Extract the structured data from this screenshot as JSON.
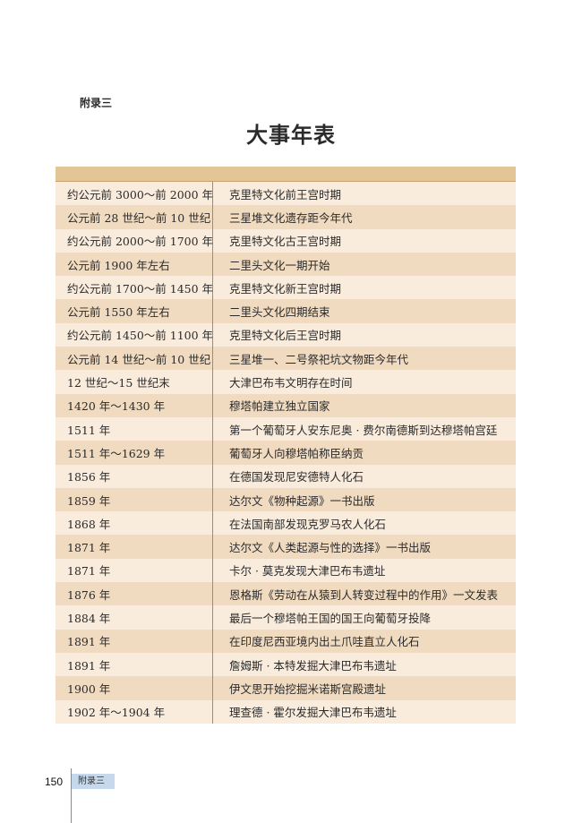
{
  "header": {
    "appendix_label": "附录三",
    "title": "大事年表"
  },
  "timeline": [
    {
      "date": "约公元前 3000～前 2000 年",
      "event": "克里特文化前王宫时期"
    },
    {
      "date": "公元前 28 世纪～前 10 世纪",
      "event": "三星堆文化遗存距今年代"
    },
    {
      "date": "约公元前 2000～前 1700 年",
      "event": "克里特文化古王宫时期"
    },
    {
      "date": "公元前 1900 年左右",
      "event": "二里头文化一期开始"
    },
    {
      "date": "约公元前 1700～前 1450 年",
      "event": "克里特文化新王宫时期"
    },
    {
      "date": "公元前 1550 年左右",
      "event": "二里头文化四期结束"
    },
    {
      "date": "约公元前 1450～前 1100 年",
      "event": "克里特文化后王宫时期"
    },
    {
      "date": "公元前 14 世纪～前 10 世纪",
      "event": "三星堆一、二号祭祀坑文物距今年代"
    },
    {
      "date": "12 世纪～15 世纪末",
      "event": "大津巴布韦文明存在时间"
    },
    {
      "date": "1420 年～1430 年",
      "event": "穆塔帕建立独立国家"
    },
    {
      "date": "1511 年",
      "event": "第一个葡萄牙人安东尼奥 · 费尔南德斯到达穆塔帕宫廷"
    },
    {
      "date": "1511 年～1629 年",
      "event": "葡萄牙人向穆塔帕称臣纳贡"
    },
    {
      "date": "1856 年",
      "event": "在德国发现尼安德特人化石"
    },
    {
      "date": "1859 年",
      "event": "达尔文《物种起源》一书出版"
    },
    {
      "date": "1868 年",
      "event": "在法国南部发现克罗马农人化石"
    },
    {
      "date": "1871 年",
      "event": "达尔文《人类起源与性的选择》一书出版"
    },
    {
      "date": "1871 年",
      "event": "卡尔 · 莫克发现大津巴布韦遗址"
    },
    {
      "date": "1876 年",
      "event": "恩格斯《劳动在从猿到人转变过程中的作用》一文发表"
    },
    {
      "date": "1884 年",
      "event": "最后一个穆塔帕王国的国王向葡萄牙投降"
    },
    {
      "date": "1891 年",
      "event": "在印度尼西亚境内出土爪哇直立人化石"
    },
    {
      "date": "1891 年",
      "event": "詹姆斯 · 本特发掘大津巴布韦遗址"
    },
    {
      "date": "1900 年",
      "event": "伊文思开始挖掘米诺斯宫殿遗址"
    },
    {
      "date": "1902 年～1904 年",
      "event": "理查德 · 霍尔发掘大津巴布韦遗址"
    }
  ],
  "footer": {
    "page_number": "150",
    "section_tag": "附录三"
  },
  "colors": {
    "header_band": "#e4c596",
    "row_light": "#f9ecdd",
    "row_dark": "#f0dbc0",
    "footer_tag": "#c6d9ec"
  }
}
